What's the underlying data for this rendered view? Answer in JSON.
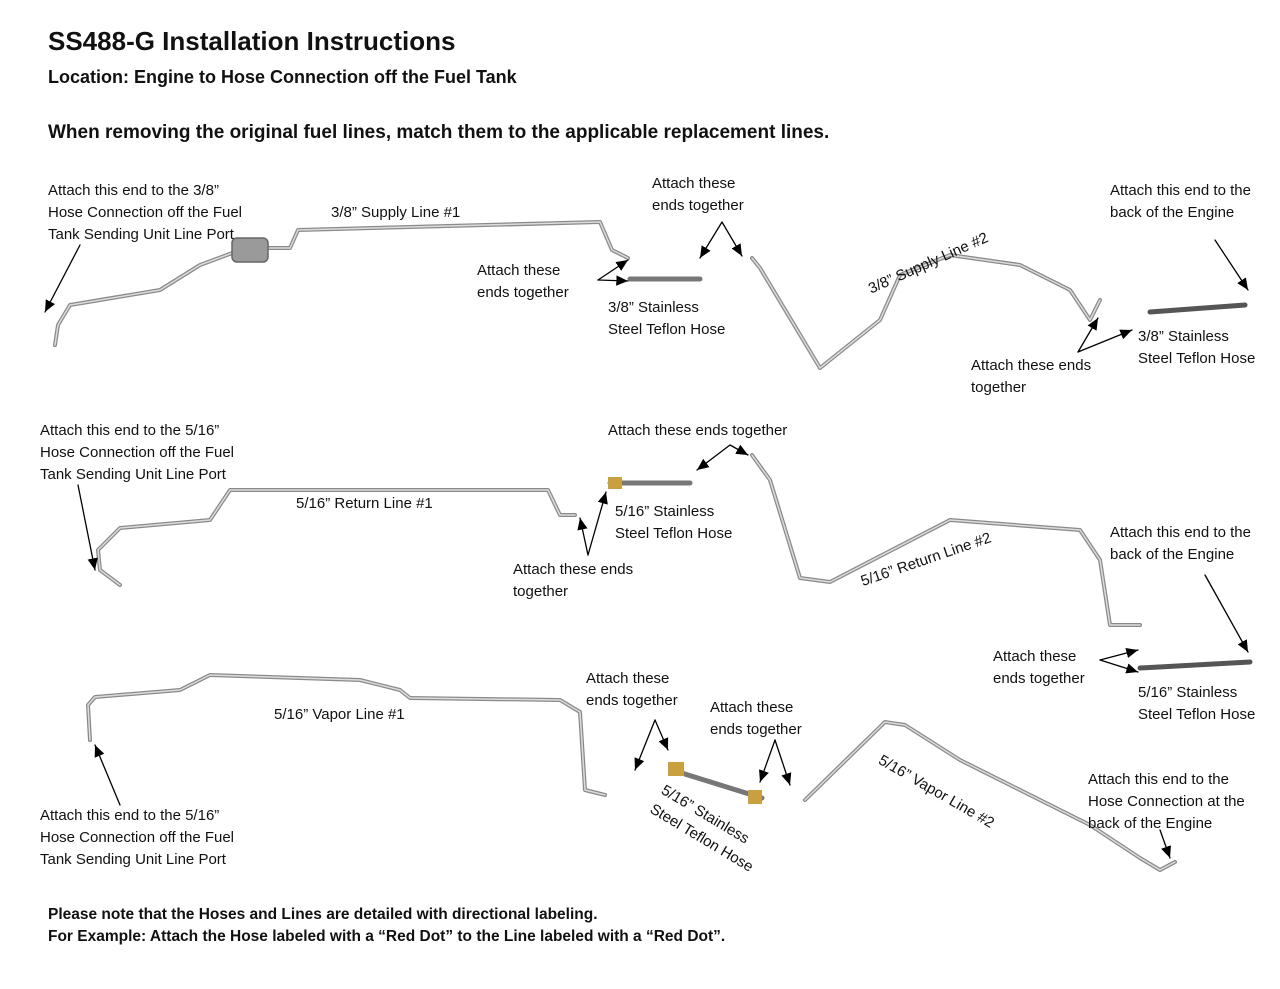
{
  "header": {
    "title": "SS488-G Installation Instructions",
    "location": "Location: Engine to Hose Connection off the Fuel Tank",
    "instruction": "When removing the original fuel lines, match them to the applicable replacement lines."
  },
  "row1": {
    "tank_end": [
      "Attach this end to the 3/8”",
      "Hose Connection off the Fuel",
      "Tank Sending Unit Line Port"
    ],
    "line1": "3/8” Supply Line #1",
    "attach_a": [
      "Attach these",
      "ends together"
    ],
    "attach_b": [
      "Attach these",
      "ends together"
    ],
    "hose1": [
      "3/8” Stainless",
      "Steel Teflon Hose"
    ],
    "line2": "3/8” Supply Line #2",
    "engine_end": [
      "Attach this end to the",
      "back of the Engine"
    ],
    "attach_c": [
      "Attach these ends",
      "together"
    ],
    "hose2": [
      "3/8” Stainless",
      "Steel Teflon Hose"
    ]
  },
  "row2": {
    "tank_end": [
      "Attach this end to the 5/16”",
      "Hose Connection off the Fuel",
      "Tank Sending Unit Line Port"
    ],
    "line1": "5/16” Return Line #1",
    "attach_a": "Attach these ends together",
    "hose1": [
      "5/16” Stainless",
      "Steel Teflon Hose"
    ],
    "attach_b": [
      "Attach these ends",
      "together"
    ],
    "line2": "5/16” Return Line #2",
    "engine_end": [
      "Attach this end to the",
      "back of the Engine"
    ],
    "attach_c": [
      "Attach these",
      "ends together"
    ],
    "hose2": [
      "5/16” Stainless",
      "Steel Teflon Hose"
    ]
  },
  "row3": {
    "line1": "5/16” Vapor Line #1",
    "tank_end": [
      "Attach this end to the 5/16”",
      "Hose Connection off the Fuel",
      "Tank Sending Unit Line Port"
    ],
    "attach_a": [
      "Attach these",
      "ends together"
    ],
    "attach_b": [
      "Attach these",
      "ends together"
    ],
    "hose1": [
      "5/16” Stainless",
      "Steel Teflon Hose"
    ],
    "line2": "5/16” Vapor Line #2",
    "engine_end": [
      "Attach this end to the",
      "Hose Connection at the",
      "back of the Engine"
    ]
  },
  "footer": {
    "line1": "Please note that the Hoses and Lines are detailed with directional labeling.",
    "line2": "For Example: Attach the Hose labeled with a “Red Dot” to the Line labeled with a “Red Dot”."
  },
  "colors": {
    "tube": "#a8a8a8",
    "hose": "#6b6b6b",
    "fitting": "#c8a040",
    "arrow": "#000000"
  }
}
